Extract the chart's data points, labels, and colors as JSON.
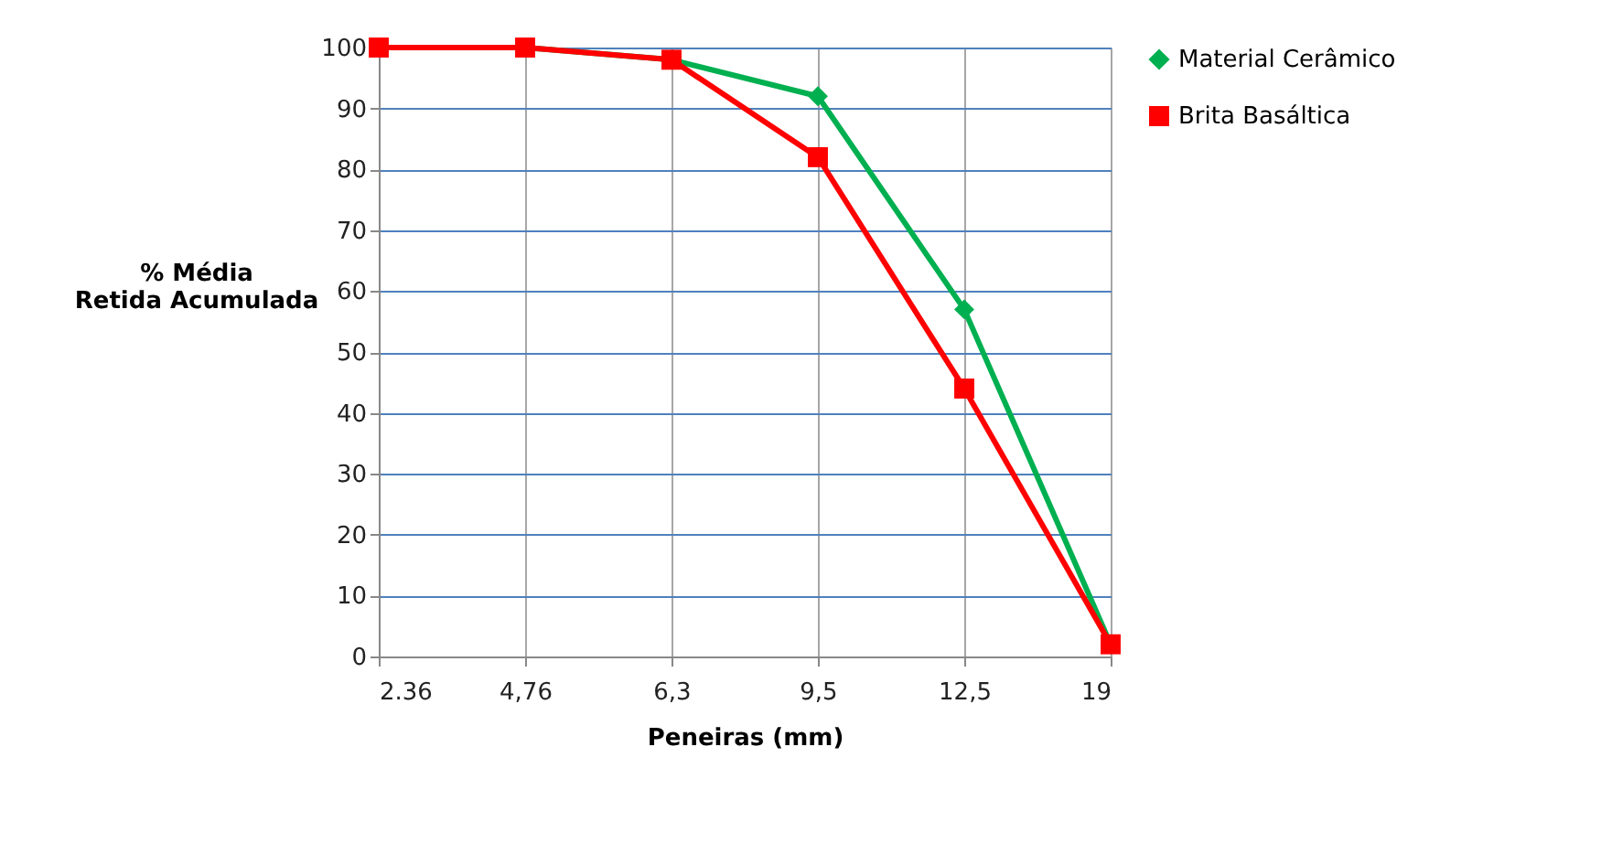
{
  "chart_data": {
    "type": "line",
    "xlabel": "Peneiras (mm)",
    "ylabel": "% Média Retida Acumulada",
    "categories": [
      "2.36",
      "4,76",
      "6,3",
      "9,5",
      "12,5",
      "19"
    ],
    "series": [
      {
        "name": "Material Cerâmico",
        "color": "#00b050",
        "marker": "diamond",
        "values": [
          100,
          100,
          98,
          92,
          57,
          2
        ]
      },
      {
        "name": "Brita Basáltica",
        "color": "#ff0000",
        "marker": "square",
        "values": [
          100,
          100,
          98,
          82,
          44,
          2
        ]
      }
    ],
    "ylim": [
      0,
      100
    ],
    "yticks": [
      0,
      10,
      20,
      30,
      40,
      50,
      60,
      70,
      80,
      90,
      100
    ],
    "grid": true,
    "legend": "right",
    "line_style": "solid"
  }
}
